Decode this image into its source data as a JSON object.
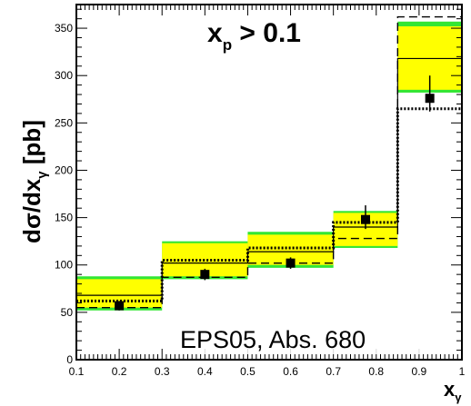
{
  "chart_data": {
    "type": "step",
    "title": "",
    "annotation_main": "x",
    "annotation_sub": "p",
    "annotation_rest": " > 0.1",
    "ylabel_main": "dσ/dx",
    "ylabel_sub": "γ",
    "ylabel_unit": " [pb]",
    "xlabel_main": "x",
    "xlabel_sub": "γ",
    "stamp": "EPS05, Abs. 680",
    "xlim": [
      0.1,
      1.0
    ],
    "ylim": [
      0,
      375
    ],
    "x_ticks": [
      "0.1",
      "0.2",
      "0.3",
      "0.4",
      "0.5",
      "0.6",
      "0.7",
      "0.8",
      "0.9",
      "1"
    ],
    "y_ticks": [
      "0",
      "50",
      "100",
      "150",
      "200",
      "250",
      "300",
      "350"
    ],
    "bins": [
      {
        "x_low": 0.1,
        "x_high": 0.3,
        "band_green": [
          52,
          88
        ],
        "band_yellow": [
          55,
          85
        ],
        "solid": 68,
        "dashed": 55,
        "dotted": 62,
        "point": 57,
        "err": [
          52,
          62
        ]
      },
      {
        "x_low": 0.3,
        "x_high": 0.5,
        "band_green": [
          85,
          125
        ],
        "band_yellow": [
          88,
          123
        ],
        "solid": 102,
        "dashed": 87,
        "dotted": 105,
        "point": 90,
        "err": [
          84,
          96
        ]
      },
      {
        "x_low": 0.5,
        "x_high": 0.7,
        "band_green": [
          97,
          135
        ],
        "band_yellow": [
          100,
          132
        ],
        "solid": 114,
        "dashed": 102,
        "dotted": 118,
        "point": 102,
        "err": [
          96,
          108
        ]
      },
      {
        "x_low": 0.7,
        "x_high": 0.85,
        "band_green": [
          118,
          157
        ],
        "band_yellow": [
          120,
          155
        ],
        "solid": 140,
        "dashed": 128,
        "dotted": 145,
        "point": 148,
        "err": [
          138,
          163
        ]
      },
      {
        "x_low": 0.85,
        "x_high": 1.0,
        "band_green": [
          282,
          357
        ],
        "band_yellow": [
          285,
          352
        ],
        "solid": 318,
        "dashed": 362,
        "dotted": 265,
        "point": 276,
        "err": [
          262,
          300
        ]
      }
    ],
    "colors": {
      "band_green": "#33e633",
      "band_yellow": "#ffff00",
      "lines": "#000000"
    },
    "grid": false
  }
}
